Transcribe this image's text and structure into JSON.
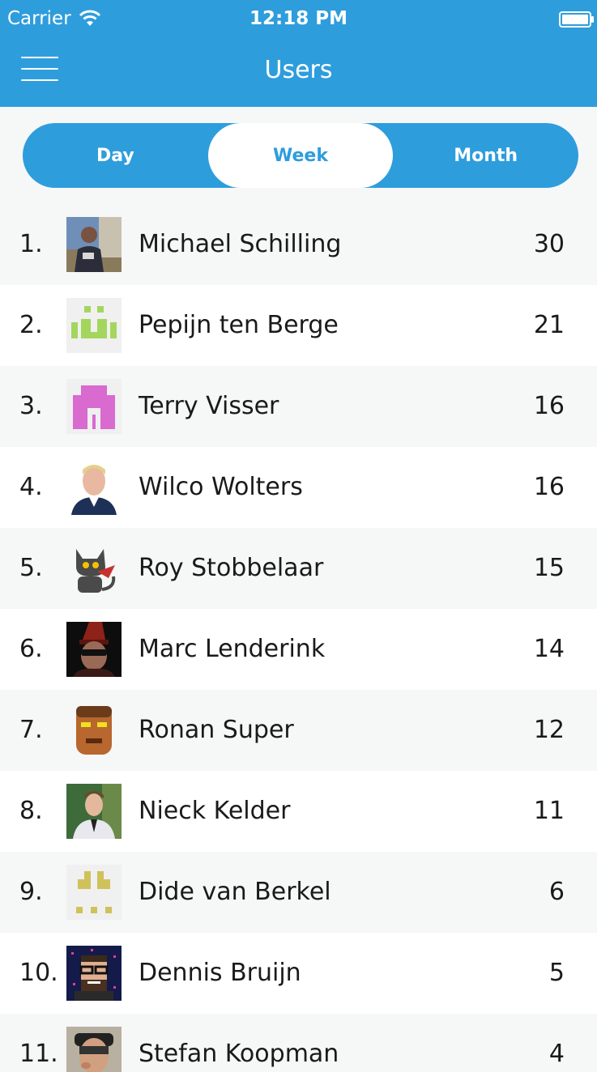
{
  "status_bar": {
    "carrier": "Carrier",
    "time": "12:18 PM"
  },
  "nav": {
    "title": "Users"
  },
  "segments": [
    "Day",
    "Week",
    "Month"
  ],
  "selected_segment": "Week",
  "users": [
    {
      "rank": "1.",
      "name": "Michael Schilling",
      "score": "30",
      "avatar": "photo-avatar"
    },
    {
      "rank": "2.",
      "name": "Pepijn ten Berge",
      "score": "21",
      "avatar": "identicon-green-avatar"
    },
    {
      "rank": "3.",
      "name": "Terry Visser",
      "score": "16",
      "avatar": "identicon-pink-avatar"
    },
    {
      "rank": "4.",
      "name": "Wilco Wolters",
      "score": "16",
      "avatar": "photo-avatar"
    },
    {
      "rank": "5.",
      "name": "Roy Stobbelaar",
      "score": "15",
      "avatar": "cat-cartoon-avatar"
    },
    {
      "rank": "6.",
      "name": "Marc Lenderink",
      "score": "14",
      "avatar": "photo-avatar"
    },
    {
      "rank": "7.",
      "name": "Ronan Super",
      "score": "12",
      "avatar": "pixel-face-avatar"
    },
    {
      "rank": "8.",
      "name": "Nieck Kelder",
      "score": "11",
      "avatar": "photo-avatar"
    },
    {
      "rank": "9.",
      "name": "Dide van Berkel",
      "score": "6",
      "avatar": "identicon-yellow-avatar"
    },
    {
      "rank": "10.",
      "name": "Dennis Bruijn",
      "score": "5",
      "avatar": "pixel-art-avatar"
    },
    {
      "rank": "11.",
      "name": "Stefan Koopman",
      "score": "4",
      "avatar": "photo-avatar"
    }
  ],
  "colors": {
    "accent": "#2e9ddc",
    "row_alt": "#f6f7f7"
  }
}
